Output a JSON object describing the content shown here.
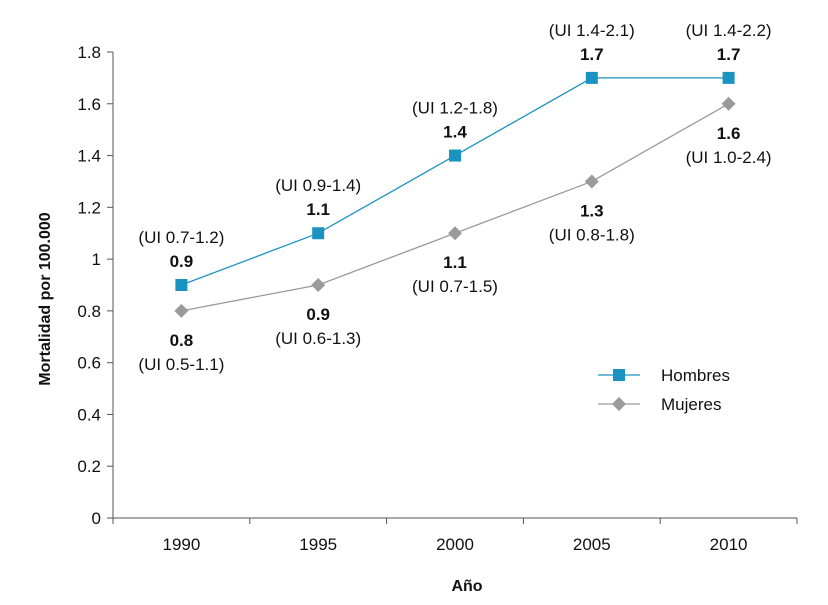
{
  "chart_data": {
    "type": "line",
    "title": "",
    "xlabel": "Año",
    "ylabel": "Mortalidad por 100.000",
    "ylim": [
      0,
      1.8
    ],
    "yticks": [
      "0",
      "0.2",
      "0.4",
      "0.6",
      "0.8",
      "1",
      "1.2",
      "1.4",
      "1.6",
      "1.8"
    ],
    "categories": [
      "1990",
      "1995",
      "2000",
      "2005",
      "2010"
    ],
    "grid": false,
    "legend_position": "lower-right",
    "series": [
      {
        "name": "Hombres",
        "color": "#1a93c0",
        "marker": "square",
        "values": [
          0.9,
          1.1,
          1.4,
          1.7,
          1.7
        ],
        "value_labels": [
          "0.9",
          "1.1",
          "1.4",
          "1.7",
          "1.7"
        ],
        "intervals": [
          "(UI 0.7-1.2)",
          "(UI 0.9-1.4)",
          "(UI 1.2-1.8)",
          "(UI 1.4-2.1)",
          "(UI 1.4-2.2)"
        ],
        "label_side": [
          "above",
          "above",
          "above",
          "above",
          "above"
        ]
      },
      {
        "name": "Mujeres",
        "color": "#9a9a9a",
        "marker": "diamond",
        "values": [
          0.8,
          0.9,
          1.1,
          1.3,
          1.6
        ],
        "value_labels": [
          "0.8",
          "0.9",
          "1.1",
          "1.3",
          "1.6"
        ],
        "intervals": [
          "(UI 0.5-1.1)",
          "(UI 0.6-1.3)",
          "(UI 0.7-1.5)",
          "(UI 0.8-1.8)",
          "(UI 1.0-2.4)"
        ],
        "label_side": [
          "below",
          "below",
          "below",
          "below",
          "below"
        ]
      }
    ]
  }
}
